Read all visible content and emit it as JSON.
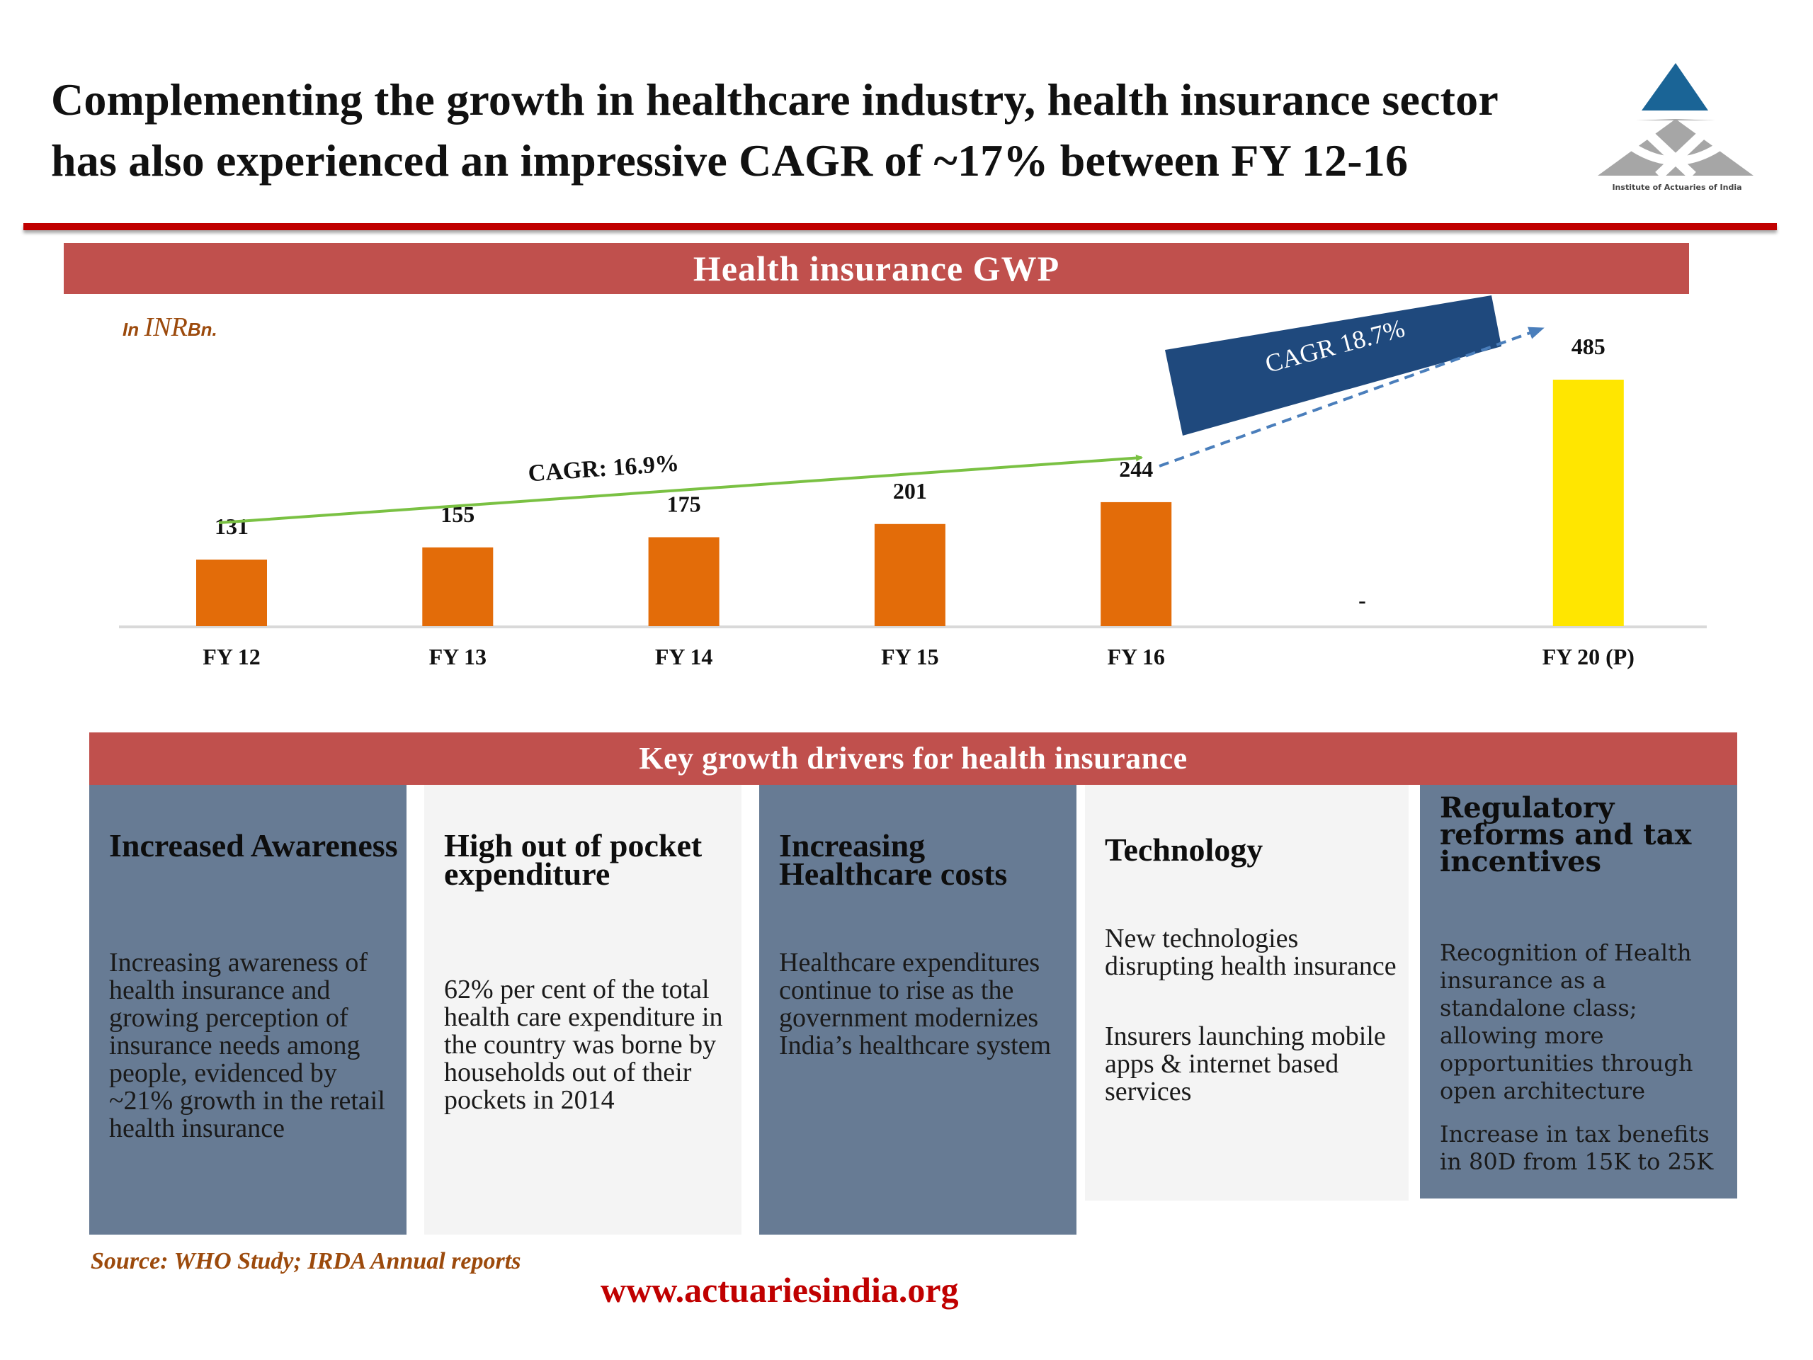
{
  "title": {
    "line1": "Complementing the growth in healthcare industry, health insurance sector",
    "line2": "has also experienced an impressive CAGR of  ~17% between FY 12-16"
  },
  "logo": {
    "icon": "institute-of-actuaries-logo-icon",
    "caption": "Institute of Actuaries of India",
    "colors": {
      "top_triangle": "#1a6496",
      "base": "#a6a6a6"
    }
  },
  "gwp_section": {
    "header": "Health insurance GWP",
    "unit_prefix": "In",
    "unit_main": "INR",
    "unit_suffix": "Bn."
  },
  "chart_data": {
    "type": "bar",
    "title": "Health insurance GWP",
    "ylabel": "In INR Bn.",
    "xlabel": "",
    "categories": [
      "FY 12",
      "FY 13",
      "FY 14",
      "FY 15",
      "FY 16",
      "-",
      "FY 20 (P)"
    ],
    "values": [
      131,
      155,
      175,
      201,
      244,
      null,
      485
    ],
    "value_labels": [
      "131",
      "155",
      "175",
      "201",
      "244",
      "-",
      "485"
    ],
    "projected": [
      false,
      false,
      false,
      false,
      false,
      false,
      true
    ],
    "ylim": [
      0,
      485
    ],
    "grid": false,
    "legend": "none",
    "colors": {
      "actual": "#e36c09",
      "projected": "#ffe600",
      "baseline": "#d9d9d9"
    },
    "annotations": [
      {
        "text": "CAGR: 16.9%",
        "from": "FY 12",
        "to": "FY 16",
        "style": "solid-arrow",
        "color": "#7ac143"
      },
      {
        "text": "CAGR 18.7%",
        "from": "FY 16",
        "to": "FY 20 (P)",
        "style": "dashed-arrow",
        "color": "#4a7ebb",
        "box_color": "#1f497d"
      }
    ]
  },
  "drivers_section": {
    "header": "Key growth drivers for health insurance",
    "columns": [
      {
        "heading": "Increased Awareness",
        "paragraphs": [
          "Increasing awareness of health insurance and growing perception of insurance needs among people, evidenced by ~21% growth in the retail health insurance"
        ]
      },
      {
        "heading": "High out of pocket expenditure",
        "paragraphs": [
          "62% per cent of the total health care expenditure in the country was borne by households out of their pockets in 2014"
        ]
      },
      {
        "heading": "Increasing Healthcare costs",
        "paragraphs": [
          "Healthcare expenditures continue to rise as the government modernizes India’s healthcare system"
        ]
      },
      {
        "heading": "Technology",
        "paragraphs": [
          "New technologies disrupting health insurance",
          "Insurers launching mobile apps & internet based services"
        ]
      },
      {
        "heading": "Regulatory reforms and tax incentives",
        "paragraphs": [
          "Recognition of Health insurance as a standalone class; allowing more opportunities through open architecture",
          "Increase in tax benefits in  80D from 15K  to 25K"
        ]
      }
    ]
  },
  "footer": {
    "source": "Source: WHO Study; IRDA Annual reports",
    "website": "www.actuariesindia.org"
  }
}
